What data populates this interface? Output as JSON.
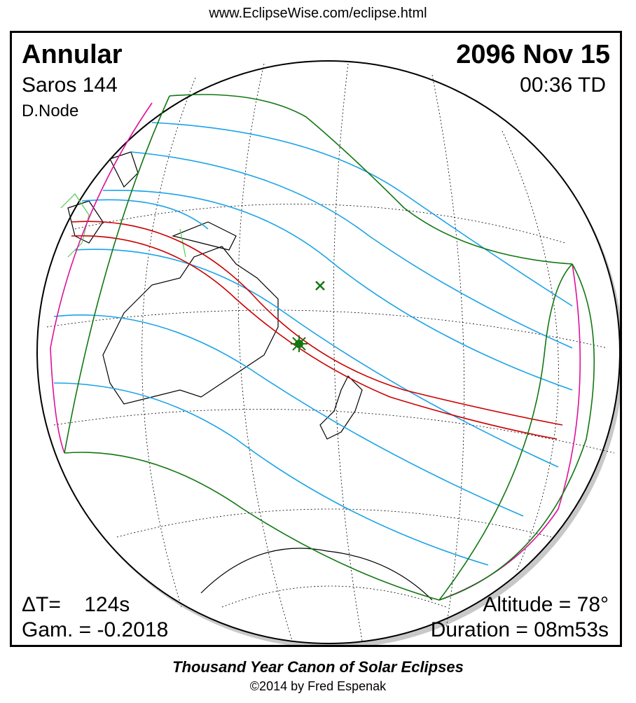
{
  "header": {
    "url": "www.EclipseWise.com/eclipse.html"
  },
  "eclipse": {
    "type": "Annular",
    "date": "2096 Nov 15",
    "saros": "Saros 144",
    "time": "00:36 TD",
    "node": "D.Node",
    "delta_t": "ΔT=    124s",
    "gamma": "Gam. = -0.2018",
    "altitude": "Altitude = 78°",
    "duration": "Duration = 08m53s"
  },
  "footer": {
    "title": "Thousand Year Canon of Solar Eclipses",
    "copyright": "©2014 by Fred Espenak"
  },
  "colors": {
    "central_path": "#cc0000",
    "penumbral_limits": "#117711",
    "partial_contours": "#1aa3e8",
    "sunrise_sunset": "#dd1199",
    "globe_outline": "#000000"
  }
}
